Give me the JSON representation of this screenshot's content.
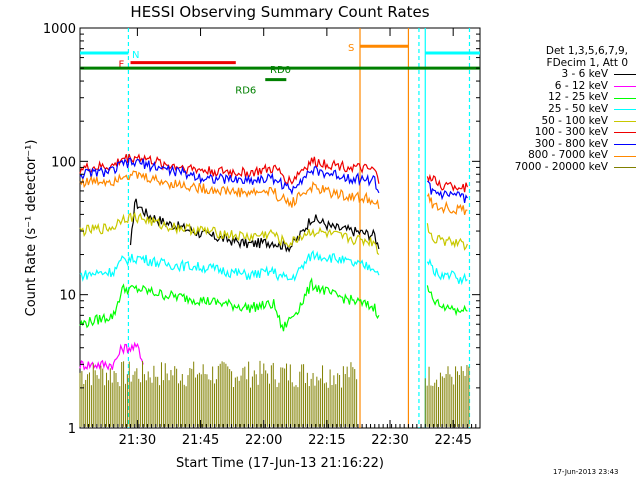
{
  "chart_data": {
    "type": "line",
    "title": "HESSI Observing Summary Count Rates",
    "xlabel": "Start Time (17-Jun-13 21:16:22)",
    "ylabel": "Count Rate (s⁻¹ detector⁻¹)",
    "yscale": "log",
    "ylim": [
      1,
      1000
    ],
    "y_ticks": [
      "1",
      "10",
      "100",
      "1000"
    ],
    "xlim_minutes": [
      0,
      95
    ],
    "x_ticks": [
      {
        "label": "21:30",
        "min": 13.63
      },
      {
        "label": "21:45",
        "min": 28.63
      },
      {
        "label": "22:00",
        "min": 43.63
      },
      {
        "label": "22:15",
        "min": 58.63
      },
      {
        "label": "22:30",
        "min": 73.63
      },
      {
        "label": "22:45",
        "min": 88.63
      }
    ],
    "legend_header": [
      "Det 1,3,5,6,7,9,",
      "FDecim 1, Att 0"
    ],
    "series": [
      {
        "name": "3 - 6 keV",
        "color": "#000000",
        "key": "s3_6"
      },
      {
        "name": "6 - 12 keV",
        "color": "#ff00ff",
        "key": "s6_12"
      },
      {
        "name": "12 - 25 keV",
        "color": "#00ff00",
        "key": "s12_25"
      },
      {
        "name": "25 - 50 keV",
        "color": "#00ffff",
        "key": "s25_50"
      },
      {
        "name": "50 - 100 keV",
        "color": "#c8c800",
        "key": "s50_100"
      },
      {
        "name": "100 - 300 keV",
        "color": "#ee0000",
        "key": "s100_300"
      },
      {
        "name": "300 - 800 keV",
        "color": "#0000ff",
        "key": "s300_800"
      },
      {
        "name": "800 - 7000 keV",
        "color": "#ff8800",
        "key": "s800_7000"
      },
      {
        "name": "7000 - 20000 keV",
        "color": "#808000",
        "key": "s7000_20000"
      }
    ],
    "data_minutes": {
      "s100_300": [
        [
          0,
          88
        ],
        [
          8,
          92
        ],
        [
          10,
          105
        ],
        [
          14,
          108
        ],
        [
          20,
          95
        ],
        [
          30,
          85
        ],
        [
          40,
          82
        ],
        [
          46,
          88
        ],
        [
          47,
          85
        ],
        [
          50,
          70
        ],
        [
          52,
          82
        ],
        [
          55,
          100
        ],
        [
          60,
          95
        ],
        [
          65,
          90
        ],
        [
          70,
          85
        ],
        [
          71,
          68
        ]
      ],
      "s300_800": [
        [
          0,
          80
        ],
        [
          8,
          85
        ],
        [
          10,
          96
        ],
        [
          14,
          98
        ],
        [
          20,
          88
        ],
        [
          30,
          75
        ],
        [
          40,
          72
        ],
        [
          46,
          75
        ],
        [
          47,
          72
        ],
        [
          50,
          60
        ],
        [
          52,
          72
        ],
        [
          55,
          85
        ],
        [
          60,
          80
        ],
        [
          65,
          75
        ],
        [
          70,
          72
        ],
        [
          71,
          58
        ]
      ],
      "s800_7000": [
        [
          0,
          70
        ],
        [
          8,
          72
        ],
        [
          10,
          80
        ],
        [
          14,
          78
        ],
        [
          20,
          70
        ],
        [
          30,
          62
        ],
        [
          40,
          58
        ],
        [
          46,
          60
        ],
        [
          47,
          55
        ],
        [
          50,
          48
        ],
        [
          52,
          55
        ],
        [
          55,
          64
        ],
        [
          60,
          58
        ],
        [
          65,
          54
        ],
        [
          70,
          52
        ],
        [
          71,
          44
        ]
      ],
      "s50_100": [
        [
          0,
          30
        ],
        [
          8,
          32
        ],
        [
          10,
          38
        ],
        [
          14,
          38
        ],
        [
          20,
          33
        ],
        [
          30,
          30
        ],
        [
          40,
          27
        ],
        [
          46,
          29
        ],
        [
          47,
          26
        ],
        [
          50,
          24
        ],
        [
          52,
          27
        ],
        [
          55,
          30
        ],
        [
          60,
          28
        ],
        [
          65,
          26
        ],
        [
          70,
          25
        ],
        [
          71,
          20
        ]
      ],
      "s3_6": [
        [
          12,
          22
        ],
        [
          13,
          50
        ],
        [
          16,
          40
        ],
        [
          20,
          35
        ],
        [
          30,
          28
        ],
        [
          40,
          24
        ],
        [
          46,
          25
        ],
        [
          47,
          24
        ],
        [
          50,
          23
        ],
        [
          52,
          27
        ],
        [
          55,
          38
        ],
        [
          60,
          32
        ],
        [
          65,
          30
        ],
        [
          70,
          28
        ],
        [
          71,
          22
        ]
      ],
      "s25_50": [
        [
          0,
          14
        ],
        [
          8,
          15
        ],
        [
          10,
          18
        ],
        [
          14,
          19
        ],
        [
          20,
          17
        ],
        [
          30,
          16
        ],
        [
          40,
          14
        ],
        [
          46,
          15
        ],
        [
          47,
          14
        ],
        [
          50,
          13
        ],
        [
          52,
          15
        ],
        [
          55,
          20
        ],
        [
          60,
          19
        ],
        [
          65,
          17
        ],
        [
          70,
          16
        ],
        [
          71,
          14
        ]
      ],
      "s12_25": [
        [
          0,
          6
        ],
        [
          8,
          7
        ],
        [
          10,
          11
        ],
        [
          14,
          11
        ],
        [
          20,
          10
        ],
        [
          30,
          9
        ],
        [
          40,
          8
        ],
        [
          46,
          8.5
        ],
        [
          47,
          7
        ],
        [
          48,
          5.5
        ],
        [
          52,
          8
        ],
        [
          55,
          12
        ],
        [
          60,
          10
        ],
        [
          65,
          9
        ],
        [
          70,
          8
        ],
        [
          71,
          7
        ]
      ],
      "s6_12": [
        [
          0,
          3
        ],
        [
          8,
          3
        ],
        [
          10,
          4
        ],
        [
          14,
          4
        ],
        [
          15,
          3
        ]
      ]
    },
    "post_gap_minutes": {
      "s100_300": [
        [
          82.5,
          78
        ],
        [
          84,
          72
        ],
        [
          86,
          66
        ],
        [
          88,
          66
        ],
        [
          90,
          65
        ],
        [
          92,
          64
        ]
      ],
      "s300_800": [
        [
          82.5,
          66
        ],
        [
          84,
          58
        ],
        [
          86,
          55
        ],
        [
          88,
          55
        ],
        [
          90,
          54
        ],
        [
          92,
          53
        ]
      ],
      "s800_7000": [
        [
          82.5,
          55
        ],
        [
          84,
          47
        ],
        [
          86,
          45
        ],
        [
          88,
          45
        ],
        [
          90,
          44
        ],
        [
          92,
          43
        ]
      ],
      "s50_100": [
        [
          82.5,
          32
        ],
        [
          84,
          27
        ],
        [
          86,
          25
        ],
        [
          88,
          25
        ],
        [
          90,
          24
        ],
        [
          92,
          24
        ]
      ],
      "s25_50": [
        [
          82.5,
          18
        ],
        [
          84,
          15
        ],
        [
          86,
          14
        ],
        [
          88,
          14
        ],
        [
          90,
          13
        ],
        [
          92,
          13
        ]
      ],
      "s12_25": [
        [
          82.5,
          11
        ],
        [
          84,
          9
        ],
        [
          86,
          8
        ],
        [
          88,
          8
        ],
        [
          90,
          7.5
        ],
        [
          92,
          7.5
        ]
      ]
    },
    "annotations": [
      {
        "text": "N",
        "color": "#00ffff",
        "min_start": 0,
        "min_end": 11.5,
        "y": 650
      },
      {
        "text": "F",
        "color": "#ee0000",
        "min_start": 12,
        "min_end": 37,
        "y": 550
      },
      {
        "text": "RD0",
        "color": "#008000",
        "min_start": 0,
        "min_end": 95,
        "y": 500
      },
      {
        "text": "RD6",
        "color": "#008000",
        "min_start": 44,
        "min_end": 49,
        "y": 410
      },
      {
        "text": "S",
        "color": "#ff8800",
        "min_start": 66.5,
        "min_end": 78,
        "y": 730
      },
      {
        "text": "",
        "color": "#00ffff",
        "min_start": 82,
        "min_end": 95,
        "y": 650
      }
    ],
    "vlines_minutes": [
      {
        "min": 11.5,
        "color": "#00ffff",
        "style": "dashed"
      },
      {
        "min": 66.5,
        "color": "#ff8800",
        "style": "solid"
      },
      {
        "min": 78,
        "color": "#ff8800",
        "style": "solid"
      },
      {
        "min": 80.5,
        "color": "#00ffff",
        "style": "dashed"
      },
      {
        "min": 82,
        "color": "#00ffff",
        "style": "solid"
      },
      {
        "min": 92.5,
        "color": "#00ffff",
        "style": "dashed"
      }
    ],
    "grid": false,
    "legend_position": "right"
  },
  "timestamp": "17-Jun-2013 23:43"
}
